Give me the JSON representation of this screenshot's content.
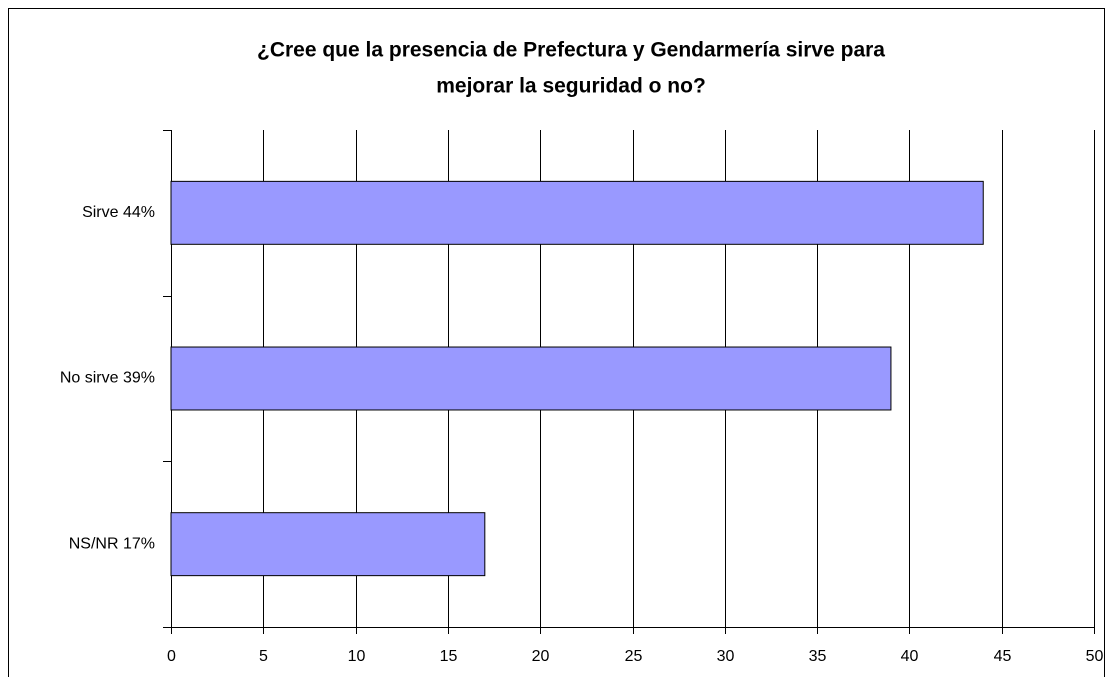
{
  "chart_data": {
    "type": "bar",
    "orientation": "horizontal",
    "title": [
      "¿Cree que la presencia de Prefectura y Gendarmería sirve para",
      "mejorar la seguridad o no?"
    ],
    "categories": [
      "Sirve  44%",
      "No sirve  39%",
      "NS/NR  17%"
    ],
    "values": [
      44,
      39,
      17
    ],
    "color": "#9999ff",
    "xlim": [
      0,
      50
    ],
    "xticks": [
      0,
      5,
      10,
      15,
      20,
      25,
      30,
      35,
      40,
      45,
      50
    ],
    "grid": true
  }
}
